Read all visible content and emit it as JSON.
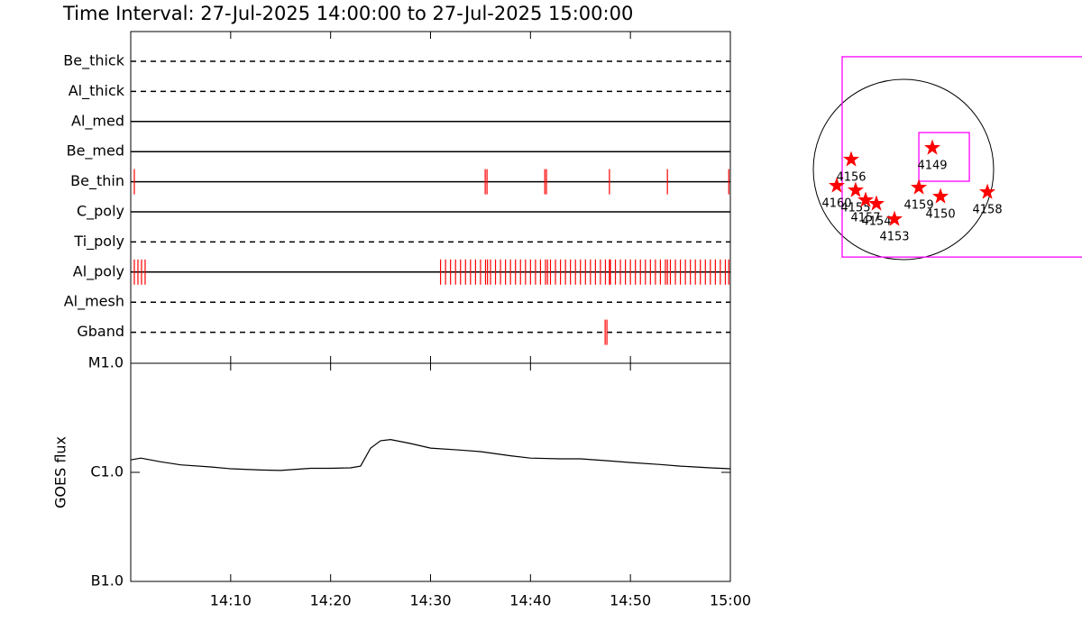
{
  "title": "Time Interval: 27-Jul-2025 14:00:00 to 27-Jul-2025 15:00:00",
  "chart_data": [
    {
      "type": "event-rows",
      "color": "#ff0000",
      "xlim": [
        0,
        60
      ],
      "xticks": [
        {
          "value": 10,
          "label": "14:10"
        },
        {
          "value": 20,
          "label": "14:20"
        },
        {
          "value": 30,
          "label": "14:30"
        },
        {
          "value": 40,
          "label": "14:40"
        },
        {
          "value": 50,
          "label": "14:50"
        },
        {
          "value": 60,
          "label": "15:00"
        }
      ],
      "rows": [
        {
          "name": "Be_thick",
          "line": "dashed",
          "events": []
        },
        {
          "name": "Al_thick",
          "line": "dashed",
          "events": []
        },
        {
          "name": "Al_med",
          "line": "solid",
          "events": []
        },
        {
          "name": "Be_med",
          "line": "solid",
          "events": []
        },
        {
          "name": "Be_thin",
          "line": "solid",
          "events": [
            0.36,
            35.47,
            35.65,
            41.43,
            41.6,
            47.9,
            53.7,
            59.84
          ]
        },
        {
          "name": "C_poly",
          "line": "solid",
          "events": []
        },
        {
          "name": "Ti_poly",
          "line": "dashed",
          "events": []
        },
        {
          "name": "Al_poly",
          "line": "solid",
          "events": [
            0.36,
            0.72,
            1.08,
            1.44,
            31.0,
            31.5,
            32.0,
            32.5,
            33.0,
            33.5,
            34.0,
            34.5,
            35.0,
            35.5,
            35.7,
            36.0,
            36.5,
            37.0,
            37.5,
            38.0,
            38.5,
            39.0,
            39.5,
            40.0,
            40.5,
            41.0,
            41.5,
            41.7,
            42.0,
            42.5,
            43.0,
            43.5,
            44.0,
            44.5,
            45.0,
            45.5,
            46.0,
            46.5,
            47.0,
            47.5,
            47.9,
            48.0,
            48.5,
            49.0,
            49.5,
            50.0,
            50.5,
            51.0,
            51.5,
            52.0,
            52.5,
            53.0,
            53.5,
            53.7,
            54.0,
            54.5,
            55.0,
            55.5,
            56.0,
            56.5,
            57.0,
            57.5,
            58.0,
            58.5,
            59.0,
            59.5,
            59.84
          ]
        },
        {
          "name": "Al_mesh",
          "line": "dashed",
          "events": []
        },
        {
          "name": "Gband",
          "line": "dashed",
          "events": [
            47.47,
            47.65
          ]
        }
      ]
    },
    {
      "type": "line",
      "ylabel": "GOES flux",
      "color": "#000000",
      "log_scale": true,
      "xlim": [
        0,
        60
      ],
      "xticks": [
        {
          "value": 10,
          "label": "14:10"
        },
        {
          "value": 20,
          "label": "14:20"
        },
        {
          "value": 30,
          "label": "14:30"
        },
        {
          "value": 40,
          "label": "14:40"
        },
        {
          "value": 50,
          "label": "14:50"
        },
        {
          "value": 60,
          "label": "15:00"
        }
      ],
      "ylim": [
        1e-07,
        1e-05
      ],
      "yticks": [
        {
          "value": 1e-07,
          "label": "B1.0"
        },
        {
          "value": 1e-06,
          "label": "C1.0"
        },
        {
          "value": 1e-05,
          "label": "M1.0"
        }
      ],
      "x": [
        0,
        1,
        3,
        5,
        8,
        10,
        13,
        15,
        18,
        20,
        22,
        23,
        24,
        25,
        26,
        28,
        30,
        33,
        35,
        38,
        40,
        43,
        45,
        48,
        50,
        53,
        55,
        58,
        60
      ],
      "values": [
        1.3e-06,
        1.35e-06,
        1.25e-06,
        1.17e-06,
        1.12e-06,
        1.08e-06,
        1.05e-06,
        1.04e-06,
        1.09e-06,
        1.09e-06,
        1.1e-06,
        1.14e-06,
        1.67e-06,
        1.95e-06,
        2e-06,
        1.84e-06,
        1.67e-06,
        1.6e-06,
        1.55e-06,
        1.42e-06,
        1.35e-06,
        1.33e-06,
        1.33e-06,
        1.27e-06,
        1.23e-06,
        1.18e-06,
        1.14e-06,
        1.1e-06,
        1.08e-06
      ]
    },
    {
      "type": "solar-map",
      "disk_radius": 950,
      "star_color": "#ff0000",
      "box_color": "#ff00ff",
      "boxes": [
        {
          "x": [
            -646,
            2110
          ],
          "y": [
            -923,
            1188
          ]
        },
        {
          "x": [
            162,
            694
          ],
          "y": [
            -124,
            389
          ]
        }
      ],
      "regions": [
        {
          "label": "4156",
          "x": -551,
          "y": 105
        },
        {
          "label": "4160",
          "x": -703,
          "y": -171
        },
        {
          "label": "4155",
          "x": -504,
          "y": -219
        },
        {
          "label": "4157",
          "x": -399,
          "y": -323
        },
        {
          "label": "4154",
          "x": -285,
          "y": -361
        },
        {
          "label": "4153",
          "x": -95,
          "y": -523
        },
        {
          "label": "4159",
          "x": 162,
          "y": -190
        },
        {
          "label": "4150",
          "x": 390,
          "y": -285
        },
        {
          "label": "4158",
          "x": 884,
          "y": -238
        },
        {
          "label": "4149",
          "x": 304,
          "y": 228
        }
      ]
    }
  ]
}
